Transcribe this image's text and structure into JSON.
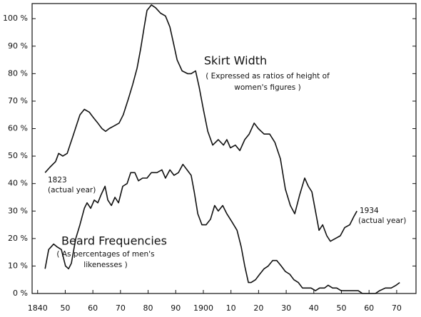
{
  "chart_data": {
    "type": "line",
    "xlim": [
      1838,
      1977
    ],
    "ylim": [
      0,
      105.5
    ],
    "xticks": [
      1840,
      {
        "value": 1850,
        "label": "50"
      },
      {
        "value": 1860,
        "label": "60"
      },
      {
        "value": 1870,
        "label": "70"
      },
      {
        "value": 1880,
        "label": "80"
      },
      {
        "value": 1890,
        "label": "90"
      },
      1900,
      {
        "value": 1910,
        "label": "10"
      },
      {
        "value": 1920,
        "label": "20"
      },
      {
        "value": 1930,
        "label": "30"
      },
      {
        "value": 1940,
        "label": "40"
      },
      {
        "value": 1950,
        "label": "50"
      },
      {
        "value": 1960,
        "label": "60"
      },
      {
        "value": 1970,
        "label": "70"
      }
    ],
    "yticks": [
      {
        "value": 0,
        "label": "0 %"
      },
      {
        "value": 10,
        "label": "10 %"
      },
      {
        "value": 20,
        "label": "20 %"
      },
      {
        "value": 30,
        "label": "30 %"
      },
      {
        "value": 40,
        "label": "40 %"
      },
      {
        "value": 50,
        "label": "50 %"
      },
      {
        "value": 60,
        "label": "60 %"
      },
      {
        "value": 70,
        "label": "70 %"
      },
      {
        "value": 80,
        "label": "80 %"
      },
      {
        "value": 90,
        "label": "90 %"
      },
      {
        "value": 100,
        "label": "100 %"
      }
    ],
    "series": [
      {
        "name": "Skirt Width",
        "color": "#111111",
        "x": [
          1842.7,
          1844.5,
          1846.5,
          1847.6,
          1849.1,
          1850.7,
          1851.7,
          1852.7,
          1854,
          1855.3,
          1856.9,
          1858.7,
          1860.2,
          1861.8,
          1863.3,
          1864.6,
          1865.9,
          1867.7,
          1869.5,
          1871,
          1872.9,
          1874.4,
          1876,
          1877.3,
          1878.6,
          1879.6,
          1881.2,
          1882.7,
          1884.5,
          1886.3,
          1887.9,
          1889.2,
          1890.5,
          1892.3,
          1894.3,
          1895.6,
          1897.2,
          1898.5,
          1900,
          1901.6,
          1903.4,
          1905.4,
          1907.3,
          1908.5,
          1909.8,
          1911.6,
          1913.2,
          1915,
          1916.6,
          1918.4,
          1919.9,
          1922,
          1924,
          1925.9,
          1927.9,
          1929.7,
          1931.5,
          1933.1,
          1934.9,
          1936.7,
          1938,
          1939.3,
          1940.6,
          1941.9,
          1943.2,
          1944.7,
          1946,
          1947.8,
          1949.6,
          1951.2,
          1953,
          1954.5,
          1955.6
        ],
        "values": [
          44,
          46,
          48,
          51,
          50,
          51,
          54,
          57,
          61,
          65,
          67,
          66,
          64,
          62,
          60,
          59,
          60,
          61,
          62,
          65,
          71,
          76,
          82,
          89,
          97,
          103,
          105,
          104,
          102,
          101,
          97,
          91,
          85,
          81,
          80,
          80,
          81,
          75,
          67,
          59,
          54,
          56,
          54,
          56,
          53,
          54,
          52,
          56,
          58,
          62,
          60,
          58,
          58,
          55,
          49,
          38,
          32,
          29,
          36,
          42,
          39,
          37,
          30,
          23,
          25,
          21,
          19,
          20,
          21,
          24,
          25,
          28,
          30
        ]
      },
      {
        "name": "Beard Frequencies",
        "color": "#111111",
        "x": [
          1842.7,
          1844,
          1845.8,
          1847,
          1848.6,
          1850.1,
          1851.2,
          1852.2,
          1853.8,
          1855.3,
          1856.9,
          1857.9,
          1859.2,
          1860.5,
          1861.8,
          1863,
          1864.4,
          1865.4,
          1866.7,
          1868,
          1869.3,
          1870.8,
          1872.4,
          1873.7,
          1875.2,
          1876.5,
          1878,
          1879.6,
          1881.2,
          1883.2,
          1885,
          1886.3,
          1887.9,
          1889.4,
          1891,
          1892.6,
          1894.1,
          1895.6,
          1896.7,
          1898,
          1899.5,
          1901,
          1902.6,
          1904.1,
          1905.4,
          1907,
          1908.5,
          1910.4,
          1912.2,
          1913.7,
          1915,
          1916.3,
          1917.3,
          1918.9,
          1920.4,
          1922,
          1923.5,
          1925.1,
          1926.6,
          1928.2,
          1929.7,
          1931.3,
          1932.8,
          1934.4,
          1935.9,
          1937.5,
          1939,
          1940.6,
          1942.1,
          1943.9,
          1945.2,
          1946.8,
          1948.3,
          1949.9,
          1951.5,
          1953,
          1954.5,
          1956.1,
          1957.6,
          1959.2,
          1960.7,
          1962.3,
          1963.8,
          1965.9,
          1968,
          1969.8,
          1971.1
        ],
        "values": [
          9,
          16,
          18,
          17,
          16,
          10,
          9,
          11,
          20,
          25,
          31,
          33,
          31,
          34,
          33,
          36,
          39,
          34,
          32,
          35,
          33,
          39,
          40,
          44,
          44,
          41,
          42,
          42,
          44,
          44,
          45,
          42,
          45,
          43,
          44,
          47,
          45,
          43,
          37,
          29,
          25,
          25,
          27,
          32,
          30,
          32,
          29,
          26,
          23,
          17,
          10,
          4,
          4,
          5,
          7,
          9,
          10,
          12,
          12,
          10,
          8,
          7,
          5,
          4,
          2,
          2,
          2,
          1,
          2,
          2,
          3,
          2,
          2,
          1,
          1,
          1,
          1,
          1,
          0,
          0,
          0,
          0,
          1,
          2,
          2,
          3,
          4
        ]
      }
    ],
    "annotations": [
      "( Expressed as ratios of height of",
      "women's figures )",
      "( As percentages of men's",
      "likenesses )",
      "1823",
      "(actual year)",
      "1934",
      "(actual year)"
    ]
  }
}
